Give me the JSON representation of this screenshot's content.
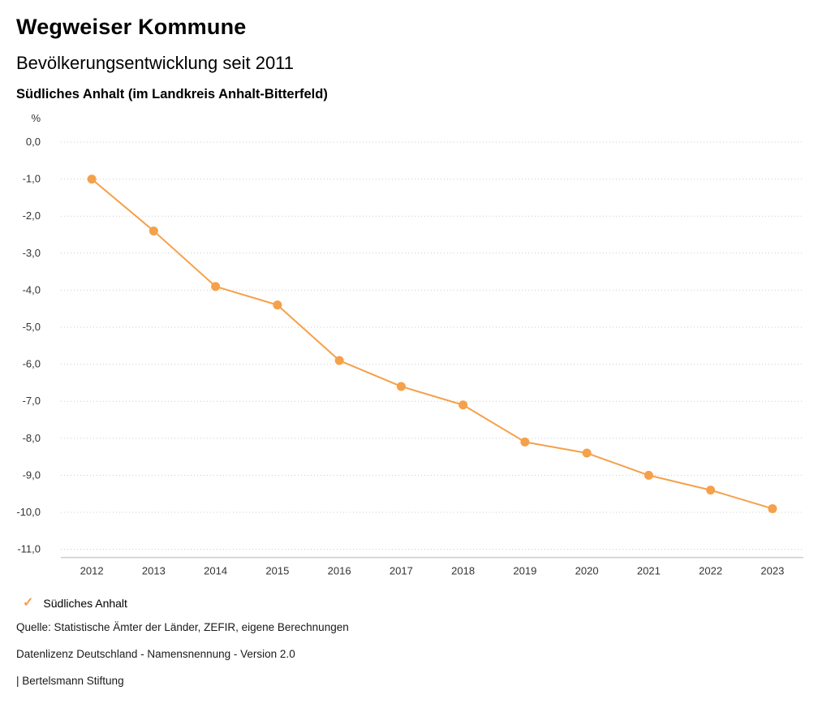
{
  "header": {
    "title": "Wegweiser Kommune",
    "subtitle": "Bevölkerungsentwicklung seit 2011",
    "region": "Südliches Anhalt (im Landkreis Anhalt-Bitterfeld)"
  },
  "chart_data": {
    "type": "line",
    "unit_label": "%",
    "categories": [
      "2012",
      "2013",
      "2014",
      "2015",
      "2016",
      "2017",
      "2018",
      "2019",
      "2020",
      "2021",
      "2022",
      "2023"
    ],
    "series": [
      {
        "name": "Südliches Anhalt",
        "color": "#f5a04a",
        "values": [
          -1.0,
          -2.4,
          -3.9,
          -4.4,
          -5.9,
          -6.6,
          -7.1,
          -8.1,
          -8.4,
          -9.0,
          -9.4,
          -9.9
        ]
      }
    ],
    "ylim": [
      -11.0,
      0.0
    ],
    "ytick_step": 1.0,
    "grid": "horizontal-dotted",
    "legend_position": "bottom-left",
    "gridline_color": "#cccccc",
    "axis_line_color": "#cccccc",
    "tick_label_color": "#333333"
  },
  "legend": {
    "items": [
      {
        "label": "Südliches Anhalt",
        "color": "#f5a04a",
        "icon": "check-icon"
      }
    ]
  },
  "footer": {
    "source": "Quelle: Statistische Ämter der Länder, ZEFIR, eigene Berechnungen",
    "license": "Datenlizenz Deutschland - Namensnennung - Version 2.0",
    "attribution": "| Bertelsmann Stiftung"
  }
}
